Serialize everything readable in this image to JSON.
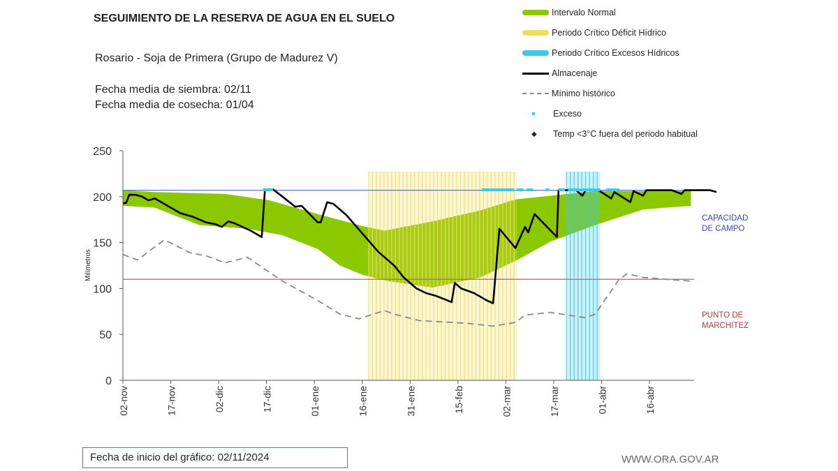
{
  "header": {
    "title": "SEGUIMIENTO DE LA RESERVA DE AGUA EN EL SUELO",
    "subtitle": "Rosario - Soja de Primera (Grupo de Madurez V)",
    "siembra": "Fecha media de siembra: 02/11",
    "cosecha": "Fecha media de cosecha: 01/04"
  },
  "footer": {
    "start_date": "Fecha de inicio del gráfico:  02/11/2024",
    "url": "WWW.ORA.GOV.AR"
  },
  "colors": {
    "normal": "#8cc800",
    "deficit": "#f0dc60",
    "excesos": "#3cc8e6",
    "almacenaje": "#000000",
    "minimo": "#888888",
    "capacidad": "#5a78c8",
    "marchitez": "#b46464"
  },
  "chart_data": {
    "type": "line",
    "title": "SEGUIMIENTO DE LA RESERVA DE AGUA EN EL SUELO",
    "ylabel": "Milímetros",
    "xlabel": "",
    "x_unit": "days since 02-nov",
    "xlim": [
      0,
      179
    ],
    "ylim": [
      0,
      250
    ],
    "yticks": [
      0,
      50,
      100,
      150,
      200,
      250
    ],
    "xticks": [
      {
        "day": 0,
        "label": "02-nov"
      },
      {
        "day": 15,
        "label": "17-nov"
      },
      {
        "day": 30,
        "label": "02-dic"
      },
      {
        "day": 45,
        "label": "17-dic"
      },
      {
        "day": 60,
        "label": "01-ene"
      },
      {
        "day": 75,
        "label": "16-ene"
      },
      {
        "day": 90,
        "label": "31-ene"
      },
      {
        "day": 105,
        "label": "15-feb"
      },
      {
        "day": 120,
        "label": "02-mar"
      },
      {
        "day": 135,
        "label": "17-mar"
      },
      {
        "day": 150,
        "label": "01-abr"
      },
      {
        "day": 165,
        "label": "16-abr"
      }
    ],
    "legend": [
      {
        "key": "normal",
        "label": "Intervalo Normal"
      },
      {
        "key": "deficit",
        "label": "Periodo Crítico Déficit Hídrico"
      },
      {
        "key": "excesos",
        "label": "Periodo Crítico Excesos Hídricos"
      },
      {
        "key": "almacenaje",
        "label": "Almacenaje"
      },
      {
        "key": "minimo",
        "label": "Mínimo histórico"
      },
      {
        "key": "exceso",
        "label": "Exceso"
      },
      {
        "key": "temp",
        "label": "Temp <3°C fuera del periodo habitual"
      }
    ],
    "reference_lines": [
      {
        "name": "capacidad",
        "value": 207,
        "label": "CAPACIDAD DE CAMPO",
        "label_lines": [
          "CAPACIDAD",
          "DE  CAMPO"
        ]
      },
      {
        "name": "marchitez",
        "value": 110,
        "label": "PUNTO DE MARCHITEZ",
        "label_lines": [
          "PUNTO  DE",
          "MARCHITEZ"
        ]
      }
    ],
    "periods": {
      "deficit": [
        77,
        123.5
      ],
      "excesos": [
        139,
        149.5
      ]
    },
    "normal_band": {
      "upper": [
        [
          0,
          207
        ],
        [
          10,
          205
        ],
        [
          32,
          203
        ],
        [
          46,
          196
        ],
        [
          61,
          181
        ],
        [
          75,
          168
        ],
        [
          82,
          163
        ],
        [
          97,
          173
        ],
        [
          112,
          185
        ],
        [
          123,
          197
        ],
        [
          134,
          201
        ],
        [
          148,
          206
        ],
        [
          161,
          206
        ],
        [
          178,
          206
        ]
      ],
      "lower": [
        [
          0,
          190
        ],
        [
          10,
          188
        ],
        [
          24,
          169
        ],
        [
          39,
          165
        ],
        [
          50,
          158
        ],
        [
          61,
          143
        ],
        [
          68,
          125
        ],
        [
          75,
          115
        ],
        [
          83,
          108
        ],
        [
          97,
          101
        ],
        [
          112,
          112
        ],
        [
          123,
          130
        ],
        [
          134,
          151
        ],
        [
          148,
          169
        ],
        [
          163,
          186
        ],
        [
          170,
          188
        ],
        [
          178,
          190
        ]
      ]
    },
    "series": [
      {
        "name": "Almacenaje",
        "key": "almacenaje",
        "points": [
          [
            0,
            193
          ],
          [
            1,
            193
          ],
          [
            2,
            202
          ],
          [
            4,
            202
          ],
          [
            6,
            200
          ],
          [
            8,
            196
          ],
          [
            10,
            198
          ],
          [
            14,
            190
          ],
          [
            18,
            182
          ],
          [
            22,
            178
          ],
          [
            26,
            172
          ],
          [
            29,
            170
          ],
          [
            31,
            167
          ],
          [
            33,
            173
          ],
          [
            35,
            171
          ],
          [
            40,
            163
          ],
          [
            42,
            159
          ],
          [
            43.5,
            156
          ],
          [
            44.5,
            208
          ],
          [
            47,
            208
          ],
          [
            50,
            200
          ],
          [
            54,
            189
          ],
          [
            56,
            190
          ],
          [
            61,
            172
          ],
          [
            62,
            172
          ],
          [
            64,
            194
          ],
          [
            66,
            192
          ],
          [
            70,
            180
          ],
          [
            75,
            160
          ],
          [
            80,
            140
          ],
          [
            85,
            125
          ],
          [
            88,
            112
          ],
          [
            92,
            100
          ],
          [
            95,
            95
          ],
          [
            98,
            92
          ],
          [
            101,
            88
          ],
          [
            103,
            85
          ],
          [
            104,
            106
          ],
          [
            106,
            100
          ],
          [
            110,
            95
          ],
          [
            114,
            87
          ],
          [
            116,
            84
          ],
          [
            118,
            165
          ],
          [
            123,
            144
          ],
          [
            126,
            167
          ],
          [
            127,
            161
          ],
          [
            129,
            181
          ],
          [
            136,
            156
          ],
          [
            136.5,
            207
          ],
          [
            142,
            207
          ],
          [
            144,
            201
          ],
          [
            145,
            207
          ],
          [
            149,
            207
          ],
          [
            153,
            198
          ],
          [
            154,
            205
          ],
          [
            159,
            194
          ],
          [
            160,
            206
          ],
          [
            163,
            201
          ],
          [
            164,
            207
          ],
          [
            172,
            207
          ],
          [
            175,
            203
          ],
          [
            176,
            207
          ],
          [
            184,
            207
          ],
          [
            186,
            205
          ]
        ]
      },
      {
        "name": "Mínimo histórico",
        "key": "minimo",
        "points": [
          [
            0,
            137
          ],
          [
            4.5,
            131
          ],
          [
            13,
            153
          ],
          [
            21,
            139
          ],
          [
            26.5,
            135
          ],
          [
            32,
            128
          ],
          [
            39,
            134
          ],
          [
            50,
            108
          ],
          [
            61,
            87
          ],
          [
            68,
            72
          ],
          [
            74,
            67
          ],
          [
            82,
            76
          ],
          [
            85,
            72
          ],
          [
            93,
            65
          ],
          [
            108,
            62
          ],
          [
            116,
            59
          ],
          [
            123,
            63
          ],
          [
            126,
            71
          ],
          [
            134,
            74
          ],
          [
            145,
            68
          ],
          [
            148,
            72
          ],
          [
            155.5,
            110
          ],
          [
            158,
            116
          ],
          [
            163,
            112
          ],
          [
            170,
            110
          ],
          [
            178,
            108
          ]
        ]
      }
    ],
    "exceso_days": [
      44.5,
      45.5,
      46.5,
      113,
      114,
      115,
      116,
      117,
      118,
      119,
      120,
      121,
      122,
      124,
      125,
      127,
      128,
      133,
      137,
      138,
      140,
      141,
      142,
      143,
      144,
      145,
      146,
      147,
      148,
      149,
      152,
      153,
      154,
      155
    ]
  }
}
